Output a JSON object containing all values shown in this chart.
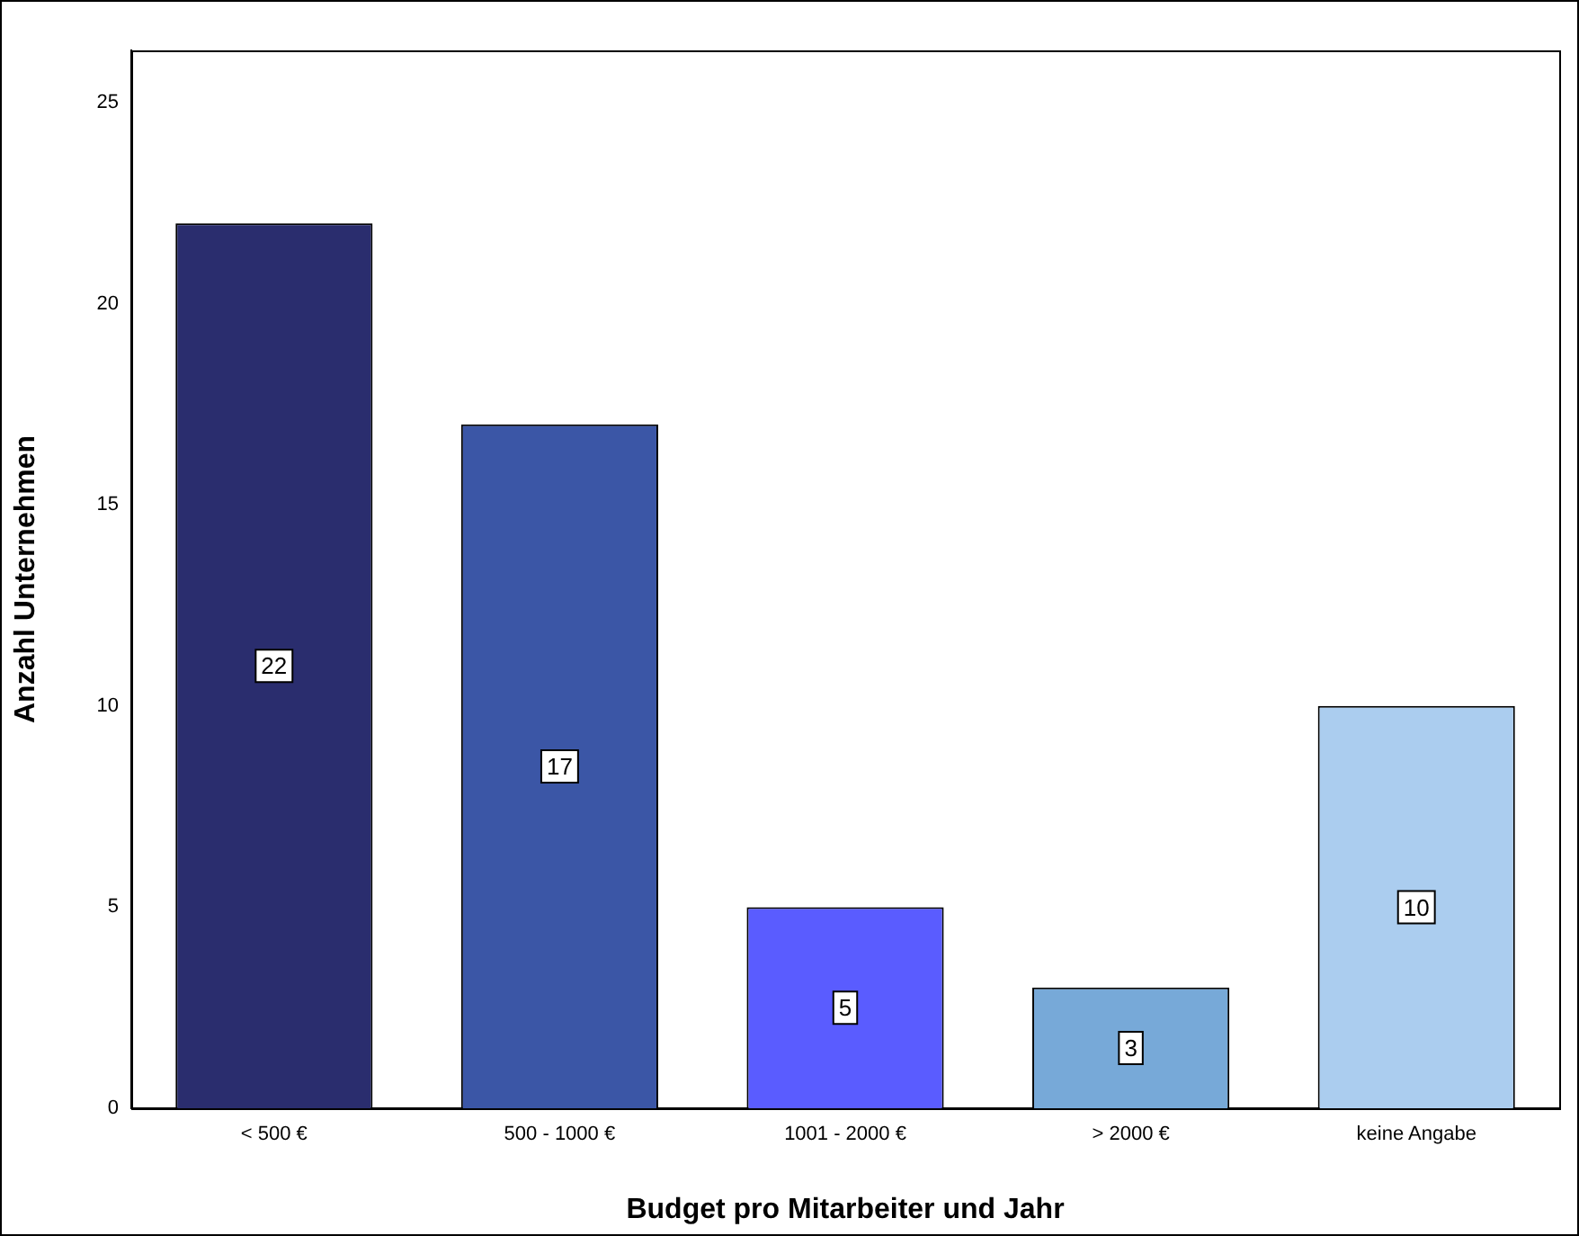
{
  "chart_data": {
    "type": "bar",
    "xlabel": "Budget pro Mitarbeiter und Jahr",
    "ylabel": "Anzahl Unternehmen",
    "categories": [
      "< 500 €",
      "500 - 1000 €",
      "1001 - 2000 €",
      "> 2000 €",
      "keine Angabe"
    ],
    "values": [
      22,
      17,
      5,
      3,
      10
    ],
    "colors": [
      "#2a2d6e",
      "#3b56a6",
      "#5a5cff",
      "#77a9d8",
      "#abcdef"
    ],
    "ylim": [
      0,
      26.3
    ],
    "yticks": [
      0,
      5,
      10,
      15,
      20,
      25
    ],
    "grid": false,
    "legend": false,
    "data_labels": true
  }
}
